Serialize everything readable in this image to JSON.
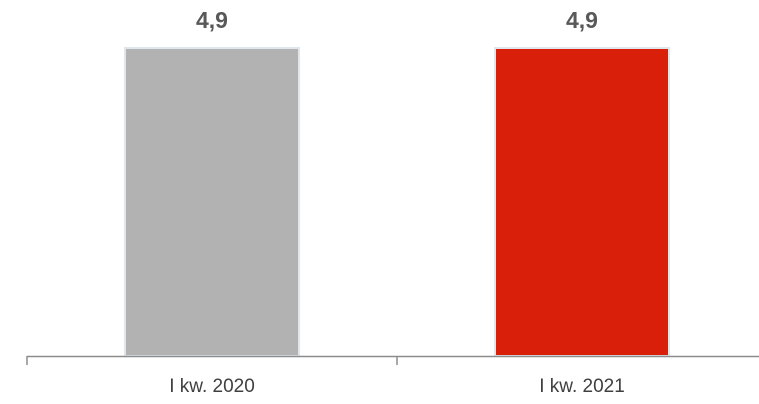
{
  "chart_data": {
    "type": "bar",
    "categories": [
      "I kw. 2020",
      "I kw. 2021"
    ],
    "values": [
      4.9,
      4.9
    ],
    "value_labels": [
      "4,9",
      "4,9"
    ],
    "bar_colors": [
      "#b2b2b2",
      "#d91e0a"
    ],
    "bar_edge_color": "#dfe6ec",
    "axis_color": "#8c8c8c",
    "ylim": [
      0,
      4.9
    ],
    "grid": false,
    "legend": "none",
    "title": "",
    "xlabel": "",
    "ylabel": ""
  }
}
